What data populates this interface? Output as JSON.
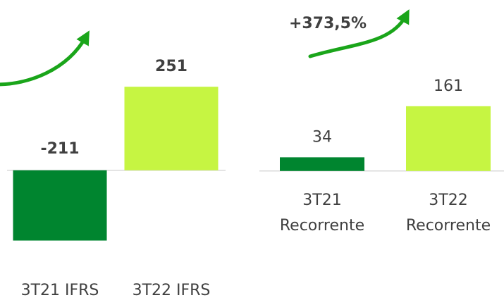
{
  "chart_data": [
    {
      "type": "bar",
      "categories": [
        "3T21 IFRS",
        "3T22 IFRS"
      ],
      "values": [
        -211,
        251
      ],
      "colors": [
        "#00852f",
        "#c6f542"
      ],
      "ylim": [
        -250,
        300
      ],
      "value_label_bold": true
    },
    {
      "type": "bar",
      "categories": [
        "3T21\nRecorrente",
        "3T22\nRecorrente"
      ],
      "values": [
        34,
        161
      ],
      "colors": [
        "#00852f",
        "#c6f542"
      ],
      "ylim": [
        -200,
        250
      ],
      "value_label_bold": false,
      "annotation": "+373,5%"
    }
  ]
}
